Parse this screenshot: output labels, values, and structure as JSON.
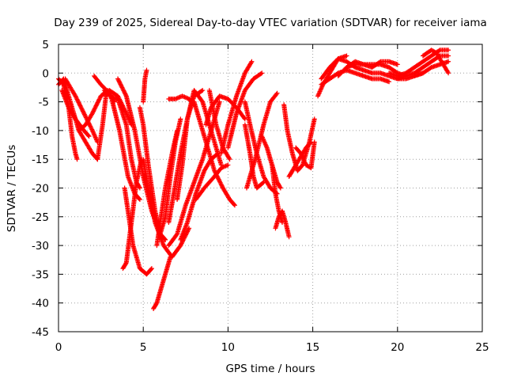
{
  "chart_data": {
    "type": "scatter",
    "title": "Day 239 of 2025, Sidereal Day-to-day VTEC variation (SDTVAR) for receiver iama",
    "xlabel": "GPS time / hours",
    "ylabel": "SDTVAR / TECUs",
    "xlim": [
      0,
      25
    ],
    "ylim": [
      -45,
      5
    ],
    "xticks": [
      0,
      5,
      10,
      15,
      20,
      25
    ],
    "yticks": [
      5,
      0,
      -5,
      -10,
      -15,
      -20,
      -25,
      -30,
      -35,
      -40,
      -45
    ],
    "grid": true,
    "marker": "+",
    "color": "#ff0000",
    "series": [
      {
        "name": "arc1",
        "x": [
          0.0,
          0.3,
          0.6,
          0.8,
          1.0,
          1.1
        ],
        "y": [
          -1.0,
          -2.0,
          -6.0,
          -11.0,
          -14.0,
          -15.0
        ]
      },
      {
        "name": "arc2",
        "x": [
          0.0,
          0.3,
          0.7,
          1.2,
          1.6,
          2.0,
          2.3
        ],
        "y": [
          -2.0,
          -1.0,
          -5.0,
          -10.0,
          -12.0,
          -14.0,
          -15.0
        ]
      },
      {
        "name": "arc3",
        "x": [
          0.4,
          1.0,
          1.5,
          2.0,
          2.3
        ],
        "y": [
          -1.0,
          -4.0,
          -7.0,
          -10.0,
          -12.0
        ]
      },
      {
        "name": "arc4",
        "x": [
          0.2,
          0.6,
          1.0,
          1.5,
          1.8
        ],
        "y": [
          -3.0,
          -6.0,
          -8.0,
          -10.0,
          -11.0
        ]
      },
      {
        "name": "arc5",
        "x": [
          1.2,
          1.6,
          2.0,
          2.5,
          2.9
        ],
        "y": [
          -10.0,
          -9.0,
          -7.0,
          -4.0,
          -3.0
        ]
      },
      {
        "name": "arc6",
        "x": [
          2.1,
          2.5,
          3.0,
          3.3
        ],
        "y": [
          -0.5,
          -2.0,
          -3.5,
          -5.0
        ]
      },
      {
        "name": "arc7",
        "x": [
          2.3,
          2.6,
          2.8,
          3.0,
          3.5,
          4.0,
          4.3
        ],
        "y": [
          -15.0,
          -9.0,
          -4.0,
          -3.0,
          -4.0,
          -7.0,
          -9.0
        ]
      },
      {
        "name": "arc8",
        "x": [
          2.7,
          3.1,
          3.6,
          4.1,
          4.5,
          4.8
        ],
        "y": [
          -3.0,
          -4.0,
          -10.0,
          -18.0,
          -21.0,
          -22.0
        ]
      },
      {
        "name": "arc9",
        "x": [
          3.0,
          3.5,
          4.0,
          4.3,
          4.6,
          4.8
        ],
        "y": [
          -4.0,
          -4.5,
          -9.0,
          -15.0,
          -19.0,
          -20.0
        ]
      },
      {
        "name": "arc10",
        "x": [
          3.9,
          4.1,
          4.4,
          4.8,
          5.2,
          5.5
        ],
        "y": [
          -20.0,
          -24.0,
          -30.0,
          -34.0,
          -35.0,
          -34.0
        ]
      },
      {
        "name": "arc11",
        "x": [
          3.8,
          4.0,
          4.3,
          4.6,
          4.9
        ],
        "y": [
          -34.0,
          -33.0,
          -26.0,
          -19.0,
          -15.0
        ]
      },
      {
        "name": "arc12",
        "x": [
          3.5,
          4.0,
          4.5,
          5.0,
          5.5,
          6.0,
          6.3
        ],
        "y": [
          -1.0,
          -4.0,
          -10.0,
          -18.0,
          -24.0,
          -28.0,
          -29.0
        ]
      },
      {
        "name": "arc13",
        "x": [
          5.0,
          5.1,
          5.2
        ],
        "y": [
          -5.0,
          -1.0,
          0.5
        ]
      },
      {
        "name": "arc14",
        "x": [
          4.8,
          5.0,
          5.3,
          5.7,
          6.0,
          6.3
        ],
        "y": [
          -6.0,
          -9.0,
          -16.0,
          -24.0,
          -28.0,
          -29.0
        ]
      },
      {
        "name": "arc15",
        "x": [
          5.0,
          5.3,
          5.7,
          6.2,
          6.7,
          7.2,
          7.7
        ],
        "y": [
          -15.0,
          -20.0,
          -26.0,
          -30.0,
          -32.0,
          -30.0,
          -27.0
        ]
      },
      {
        "name": "arc16",
        "x": [
          5.6,
          5.8,
          6.0,
          6.3,
          6.6
        ],
        "y": [
          -41.0,
          -40.0,
          -38.0,
          -35.0,
          -32.0
        ]
      },
      {
        "name": "arc17",
        "x": [
          5.8,
          6.0,
          6.3,
          6.7,
          7.0
        ],
        "y": [
          -30.0,
          -26.0,
          -20.0,
          -14.0,
          -10.0
        ]
      },
      {
        "name": "arc18",
        "x": [
          6.0,
          6.3,
          6.6,
          6.9,
          7.2
        ],
        "y": [
          -28.0,
          -25.0,
          -18.0,
          -12.0,
          -8.0
        ]
      },
      {
        "name": "arc19",
        "x": [
          6.5,
          6.9,
          7.3,
          7.7,
          8.0
        ],
        "y": [
          -4.5,
          -4.5,
          -4.0,
          -4.5,
          -5.5
        ]
      },
      {
        "name": "arc20",
        "x": [
          6.5,
          6.8,
          7.2,
          7.6,
          8.0,
          8.5
        ],
        "y": [
          -26.0,
          -21.0,
          -14.0,
          -8.0,
          -4.0,
          -3.0
        ]
      },
      {
        "name": "arc21",
        "x": [
          7.0,
          7.3,
          7.6,
          8.0,
          8.5,
          9.2,
          9.6
        ],
        "y": [
          -22.0,
          -16.0,
          -8.0,
          -3.0,
          -5.0,
          -12.0,
          -16.0
        ]
      },
      {
        "name": "arc22",
        "x": [
          6.5,
          7.0,
          7.5,
          8.0,
          8.5,
          9.0,
          9.5
        ],
        "y": [
          -30.0,
          -28.0,
          -23.0,
          -19.0,
          -15.0,
          -10.0,
          -5.0
        ]
      },
      {
        "name": "arc23",
        "x": [
          7.2,
          7.6,
          8.1,
          8.6,
          9.0,
          9.4
        ],
        "y": [
          -29.0,
          -26.0,
          -21.0,
          -17.0,
          -15.0,
          -14.0
        ]
      },
      {
        "name": "arc24",
        "x": [
          8.0,
          8.3,
          8.7,
          9.2,
          9.7,
          10.1,
          10.4
        ],
        "y": [
          -5.0,
          -8.0,
          -12.0,
          -17.0,
          -20.0,
          -22.0,
          -23.0
        ]
      },
      {
        "name": "arc25",
        "x": [
          8.1,
          8.6,
          9.2,
          9.6,
          10.0
        ],
        "y": [
          -22.0,
          -20.0,
          -18.0,
          -16.5,
          -16.0
        ]
      },
      {
        "name": "arc26",
        "x": [
          8.7,
          9.0,
          9.5,
          10.0,
          10.5,
          11.0
        ],
        "y": [
          -9.0,
          -6.0,
          -4.0,
          -4.5,
          -6.0,
          -8.0
        ]
      },
      {
        "name": "arc27",
        "x": [
          8.9,
          9.3,
          9.7,
          10.1
        ],
        "y": [
          -3.0,
          -9.0,
          -13.0,
          -15.0
        ]
      },
      {
        "name": "arc28",
        "x": [
          9.6,
          10.0,
          10.5,
          11.0,
          11.4
        ],
        "y": [
          -14.0,
          -9.0,
          -4.0,
          0.0,
          2.0
        ]
      },
      {
        "name": "arc29",
        "x": [
          10.0,
          10.5,
          11.0,
          11.5,
          12.0
        ],
        "y": [
          -13.0,
          -7.0,
          -3.0,
          -1.0,
          0.0
        ]
      },
      {
        "name": "arc30",
        "x": [
          11.0,
          11.3,
          11.7,
          12.1,
          12.5,
          12.9
        ],
        "y": [
          -5.0,
          -9.0,
          -14.0,
          -18.0,
          -20.0,
          -21.0
        ]
      },
      {
        "name": "arc31",
        "x": [
          11.0,
          11.3,
          11.5,
          11.7,
          12.1
        ],
        "y": [
          -9.0,
          -14.0,
          -18.0,
          -20.0,
          -19.0
        ]
      },
      {
        "name": "arc32",
        "x": [
          11.1,
          11.6,
          12.1,
          12.5,
          12.9
        ],
        "y": [
          -20.0,
          -15.0,
          -9.0,
          -5.0,
          -3.5
        ]
      },
      {
        "name": "arc33",
        "x": [
          12.0,
          12.3,
          12.6,
          12.9,
          13.1
        ],
        "y": [
          -11.0,
          -13.0,
          -16.0,
          -19.0,
          -20.0
        ]
      },
      {
        "name": "arc34",
        "x": [
          12.6,
          12.8,
          13.0,
          13.2
        ],
        "y": [
          -16.0,
          -21.0,
          -24.0,
          -26.0
        ]
      },
      {
        "name": "arc35",
        "x": [
          12.8,
          13.0,
          13.2,
          13.4,
          13.6
        ],
        "y": [
          -27.0,
          -25.0,
          -24.0,
          -26.0,
          -28.5
        ]
      },
      {
        "name": "arc36",
        "x": [
          13.3,
          13.5,
          13.8,
          14.1,
          14.4,
          14.8,
          15.1
        ],
        "y": [
          -5.5,
          -10.0,
          -14.0,
          -17.0,
          -16.0,
          -12.0,
          -8.0
        ]
      },
      {
        "name": "arc37",
        "x": [
          13.6,
          13.8,
          14.2,
          14.6,
          14.9
        ],
        "y": [
          -18.0,
          -17.0,
          -15.0,
          -13.0,
          -12.0
        ]
      },
      {
        "name": "arc38",
        "x": [
          14.0,
          14.3,
          14.6,
          14.9,
          15.1
        ],
        "y": [
          -13.0,
          -14.0,
          -16.0,
          -16.5,
          -12.0
        ]
      },
      {
        "name": "arc39",
        "x": [
          15.3,
          15.6,
          16.0,
          16.5,
          17.0
        ],
        "y": [
          -4.0,
          -2.0,
          0.0,
          2.5,
          3.0
        ]
      },
      {
        "name": "arc40",
        "x": [
          15.5,
          16.0,
          16.5,
          17.0,
          17.5,
          18.0
        ],
        "y": [
          -1.0,
          1.0,
          2.5,
          2.0,
          1.0,
          0.5
        ]
      },
      {
        "name": "arc41",
        "x": [
          15.5,
          16.0,
          16.5,
          17.0,
          17.5,
          18.0,
          18.5,
          19.0,
          19.5
        ],
        "y": [
          -2.0,
          -1.0,
          0.0,
          0.5,
          0.0,
          -0.5,
          -1.0,
          -1.0,
          -1.5
        ]
      },
      {
        "name": "arc42",
        "x": [
          16.5,
          17.0,
          17.5,
          18.0,
          18.5,
          19.0,
          19.5,
          20.0,
          20.5
        ],
        "y": [
          -0.5,
          1.0,
          1.5,
          1.5,
          1.5,
          1.5,
          1.0,
          0.0,
          -0.5
        ]
      },
      {
        "name": "arc43",
        "x": [
          17.0,
          17.5,
          18.0,
          18.5,
          19.0,
          19.5,
          20.0
        ],
        "y": [
          1.0,
          2.0,
          1.5,
          1.0,
          2.0,
          2.0,
          1.5
        ]
      },
      {
        "name": "arc44",
        "x": [
          18.0,
          18.5,
          19.0,
          19.5,
          20.0,
          20.5,
          21.0,
          21.5
        ],
        "y": [
          0.5,
          0.0,
          0.0,
          -0.5,
          -1.0,
          -1.0,
          -0.5,
          0.0
        ]
      },
      {
        "name": "arc45",
        "x": [
          19.5,
          20.0,
          20.5,
          21.0,
          21.5,
          22.0,
          22.5,
          23.0
        ],
        "y": [
          0.0,
          -0.5,
          0.0,
          1.0,
          2.0,
          3.0,
          4.0,
          4.0
        ]
      },
      {
        "name": "arc46",
        "x": [
          20.0,
          20.5,
          21.0,
          21.5,
          22.0,
          22.5,
          23.0
        ],
        "y": [
          -1.0,
          -0.5,
          0.0,
          1.0,
          2.0,
          3.0,
          3.0
        ]
      },
      {
        "name": "arc47",
        "x": [
          21.0,
          21.5,
          22.0,
          22.5,
          23.0
        ],
        "y": [
          -0.5,
          0.0,
          1.0,
          1.5,
          2.0
        ]
      },
      {
        "name": "arc48",
        "x": [
          21.5,
          22.0,
          22.3,
          22.6,
          23.0
        ],
        "y": [
          3.0,
          4.0,
          3.5,
          2.0,
          0.0
        ]
      }
    ]
  }
}
